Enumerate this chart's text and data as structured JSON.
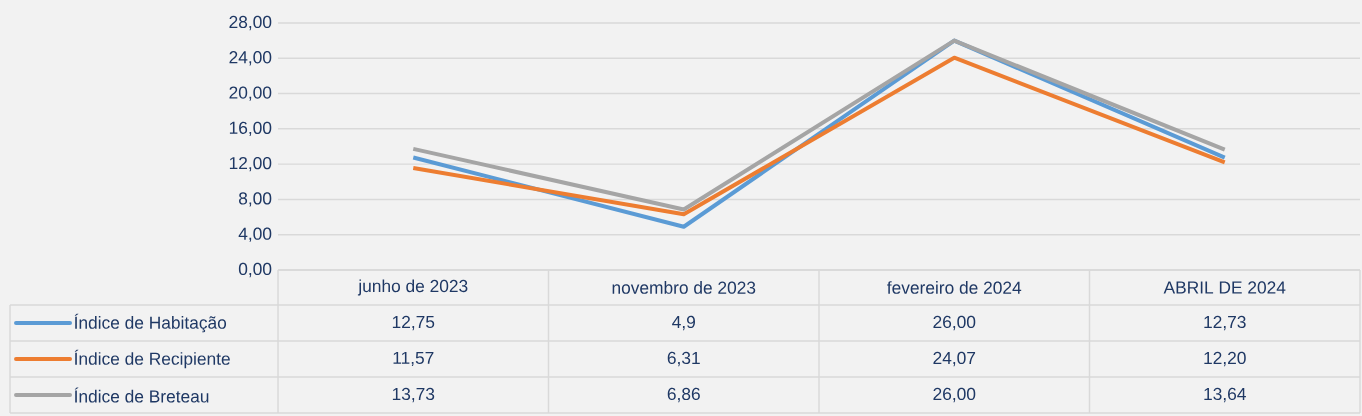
{
  "chart_data": {
    "type": "line",
    "categories": [
      "junho de 2023",
      "novembro de 2023",
      "fevereiro de 2024",
      "ABRIL DE 2024"
    ],
    "series": [
      {
        "name": "Índice de Habitação",
        "color": "#5b9bd5",
        "values": [
          12.75,
          4.9,
          26.0,
          12.73
        ],
        "value_labels": [
          "12,75",
          "4,9",
          "26,00",
          "12,73"
        ]
      },
      {
        "name": "Índice de Recipiente",
        "color": "#ed7d31",
        "values": [
          11.57,
          6.31,
          24.07,
          12.2
        ],
        "value_labels": [
          "11,57",
          "6,31",
          "24,07",
          "12,20"
        ]
      },
      {
        "name": "Índice de Breteau",
        "color": "#a5a5a5",
        "values": [
          13.73,
          6.86,
          26.0,
          13.64
        ],
        "value_labels": [
          "13,73",
          "6,86",
          "26,00",
          "13,64"
        ]
      }
    ],
    "ylim": [
      0,
      28
    ],
    "yticks": [
      {
        "value": 0,
        "label": "0,00"
      },
      {
        "value": 4,
        "label": "4,00"
      },
      {
        "value": 8,
        "label": "8,00"
      },
      {
        "value": 12,
        "label": "12,00"
      },
      {
        "value": 16,
        "label": "16,00"
      },
      {
        "value": 20,
        "label": "20,00"
      },
      {
        "value": 24,
        "label": "24,00"
      },
      {
        "value": 28,
        "label": "28,00"
      }
    ],
    "grid": "y",
    "legend": "bottom",
    "marker": "none",
    "line_style": "solid"
  }
}
